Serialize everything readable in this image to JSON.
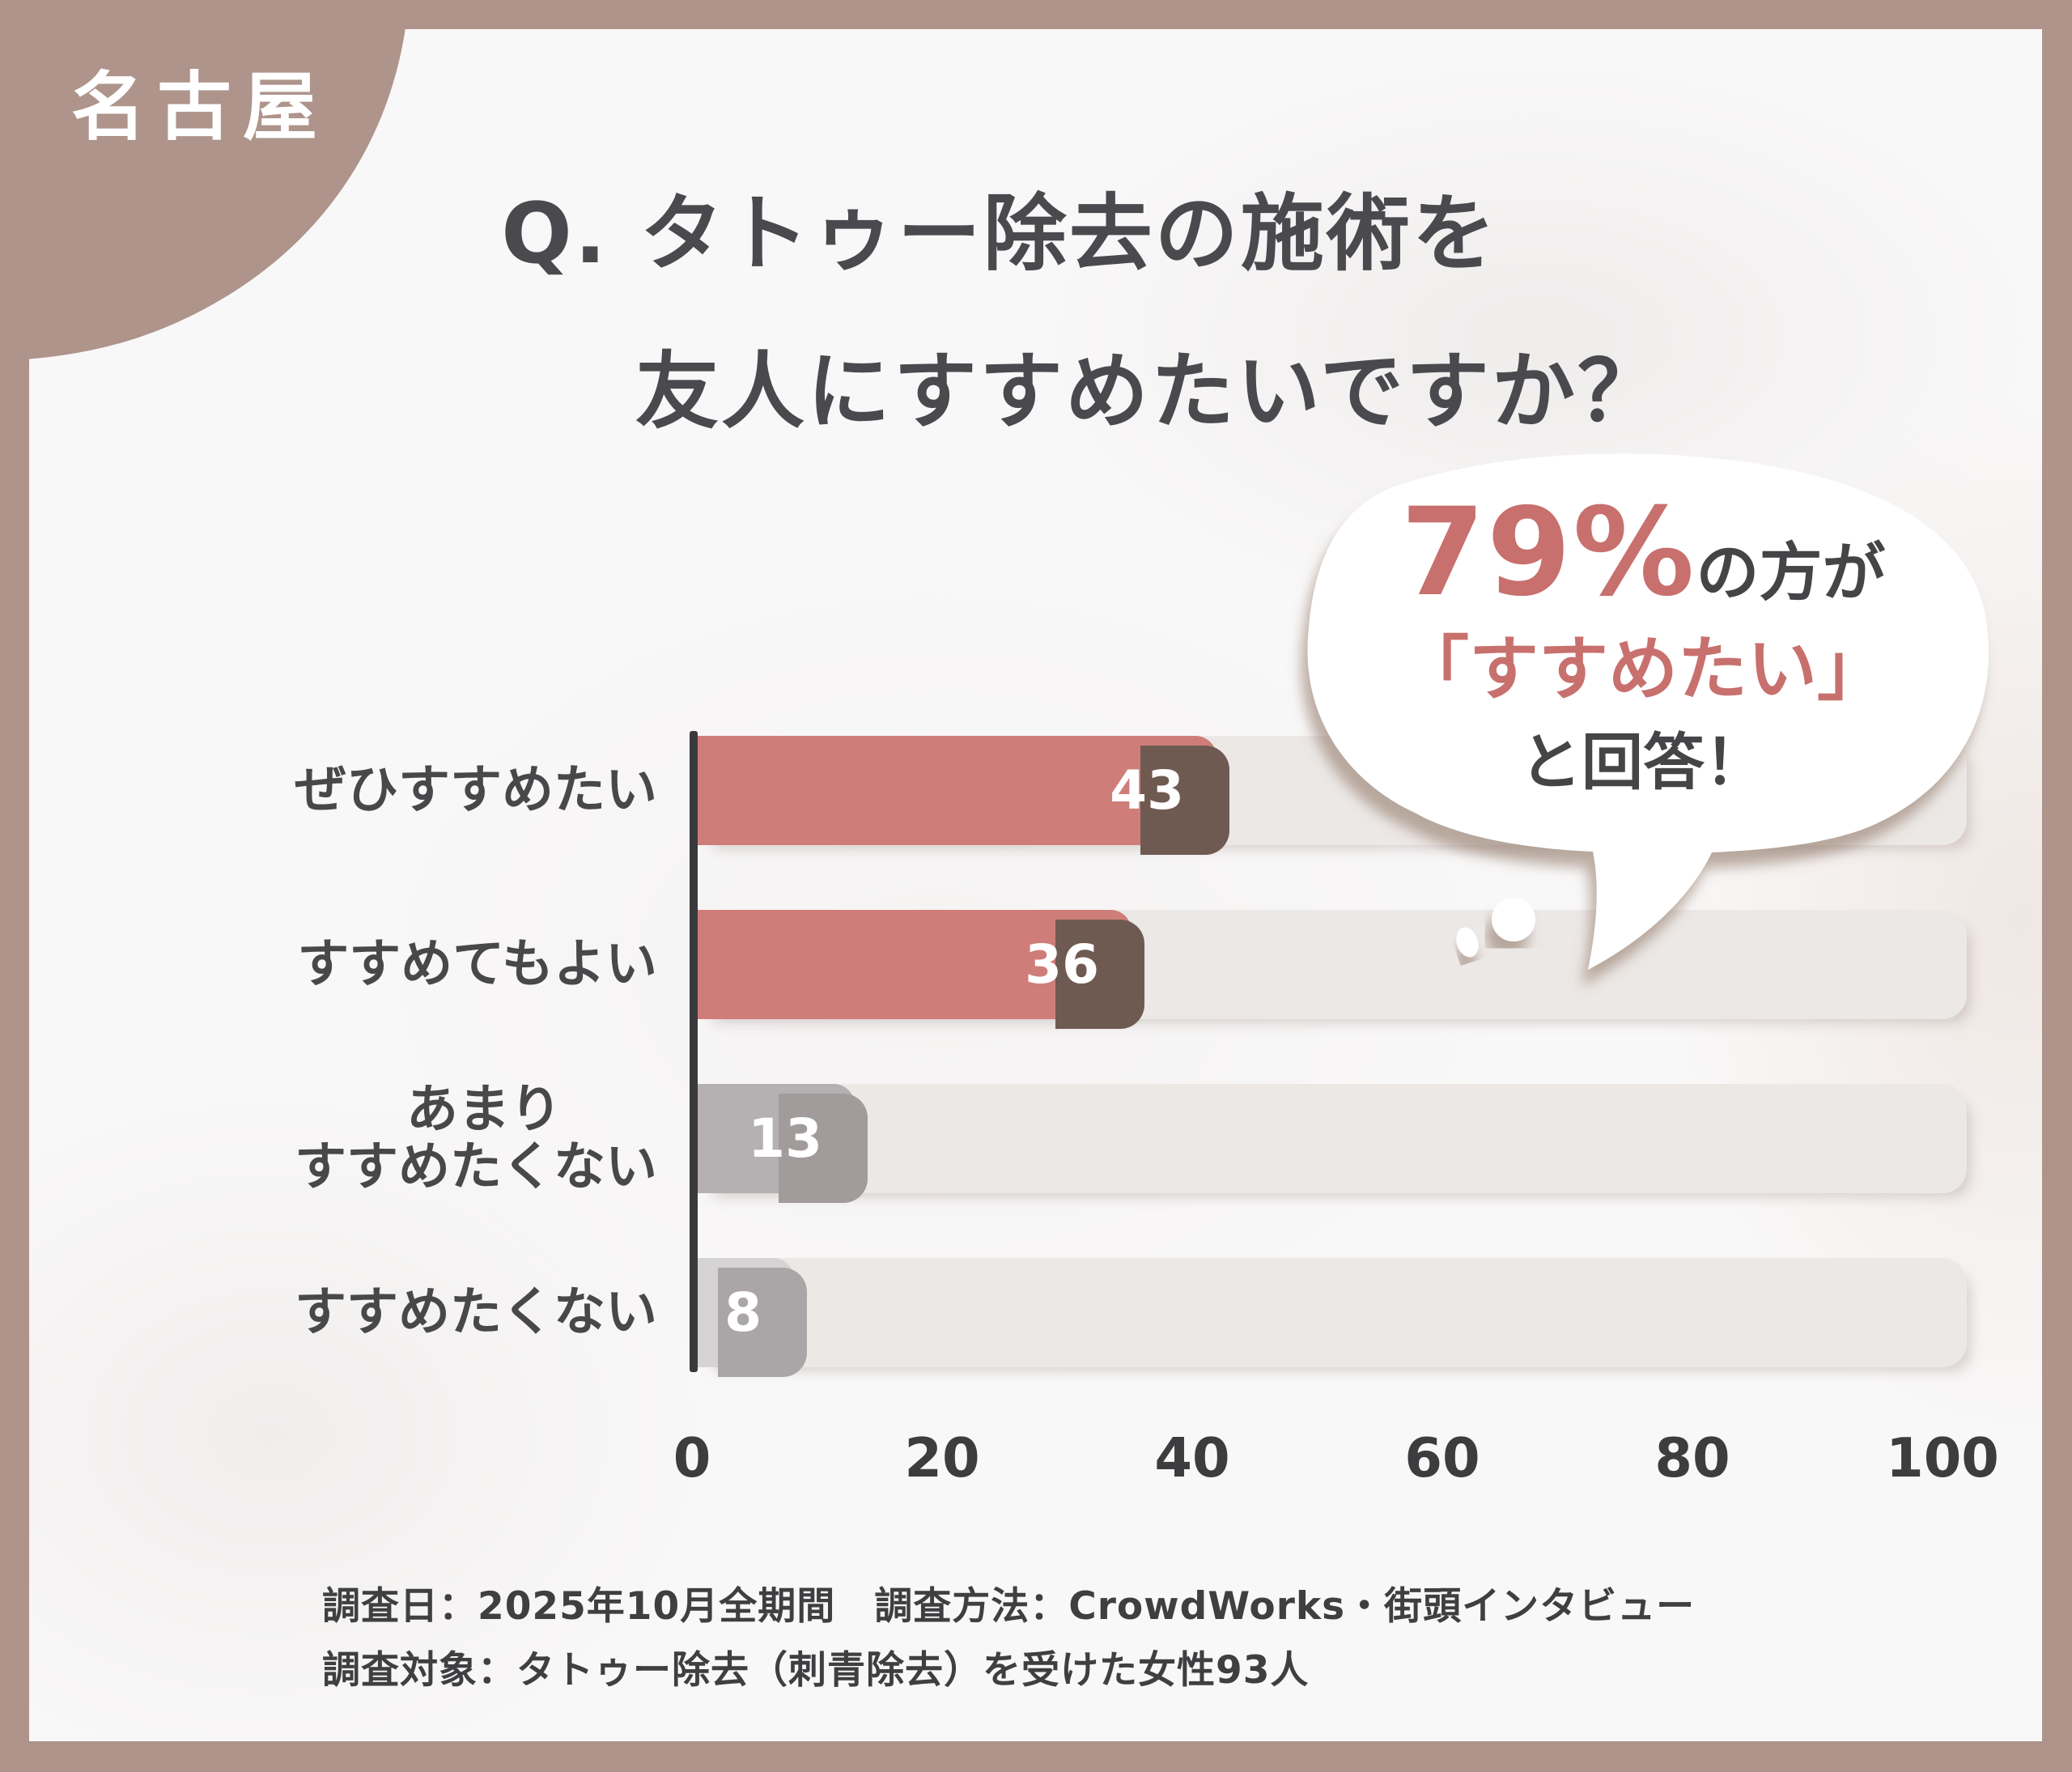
{
  "badge": {
    "label": "名古屋"
  },
  "title": {
    "line1": "Q. タトゥー除去の施術を",
    "line2": "友人にすすめたいですか？"
  },
  "bubble": {
    "percent": "79%",
    "percent_suffix": "の方が",
    "quote": "「すすめたい」",
    "answer": "と回答！"
  },
  "chart_data": {
    "type": "bar",
    "orientation": "horizontal",
    "title": "Q. タトゥー除去の施術を友人にすすめたいですか？",
    "categories": [
      "ぜひすすめたい",
      "すすめてもよい",
      "あまりすすめたくない",
      "すすめたくない"
    ],
    "category_lines": [
      [
        "ぜひすすめたい"
      ],
      [
        "すすめてもよい"
      ],
      [
        "あまり",
        "すすめたくない"
      ],
      [
        "すすめたくない"
      ]
    ],
    "values": [
      43,
      36,
      13,
      8
    ],
    "bar_colors": [
      "#cf7d79",
      "#cf7d79",
      "#b5b0b1",
      "#d6d3d4"
    ],
    "bar_shadow_colors": [
      "#6f5a52",
      "#6f5a52",
      "#a19b9b",
      "#aaa5a6"
    ],
    "x_ticks": [
      0,
      20,
      40,
      60,
      80,
      100
    ],
    "xlim": [
      0,
      100
    ],
    "xlabel": "",
    "ylabel": "",
    "grid": false,
    "legend": false,
    "value_label_position": "inside-end",
    "value_label_color": "#ffffff",
    "highlight_note": "79%の方が「すすめたい」と回答！"
  },
  "footer": {
    "line1": "調査日：2025年10月全期間　調査方法：CrowdWorks・街頭インタビュー",
    "line2": "調査対象：タトゥー除去（刺青除去）を受けた女性93人"
  },
  "colors": {
    "frame_brown": "#ae948b",
    "panel_bg": "#f9f8f8",
    "accent_red": "#cf7d79",
    "accent_red_text": "#c8706d",
    "gray_bar": "#b5b0b1",
    "light_gray_bar": "#d6d3d4",
    "track": "#ece8e6",
    "dark_text": "#47474a",
    "bubble_shadow": "#8a6f60"
  }
}
